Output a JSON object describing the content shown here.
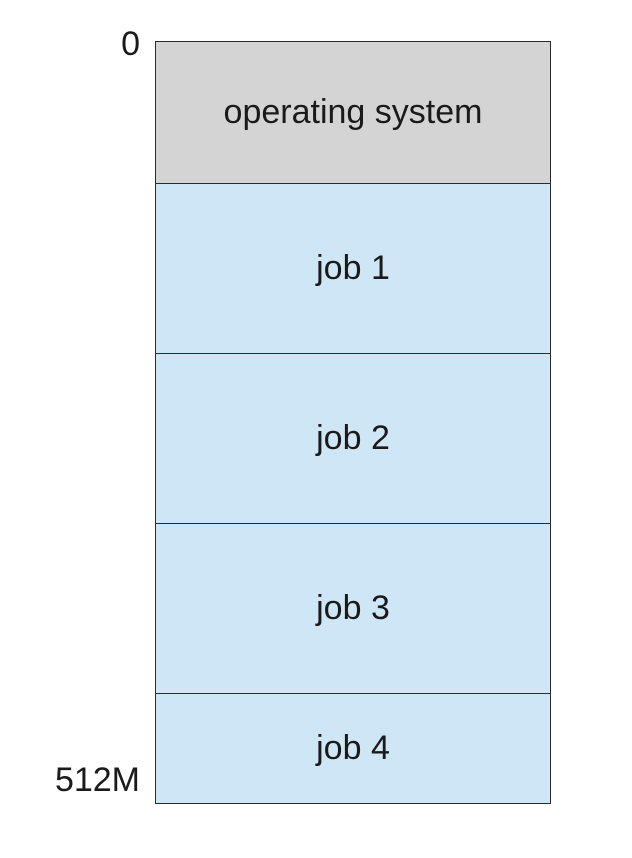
{
  "addresses": {
    "top": "0",
    "bottom": "512M"
  },
  "segments": [
    {
      "label": "operating system",
      "kind": "os"
    },
    {
      "label": "job 1",
      "kind": "job"
    },
    {
      "label": "job 2",
      "kind": "job"
    },
    {
      "label": "job 3",
      "kind": "job"
    },
    {
      "label": "job 4",
      "kind": "job"
    }
  ],
  "colors": {
    "os_fill": "#d4d4d4",
    "job_fill": "#cfe6f6",
    "border": "#2b2b2b"
  }
}
